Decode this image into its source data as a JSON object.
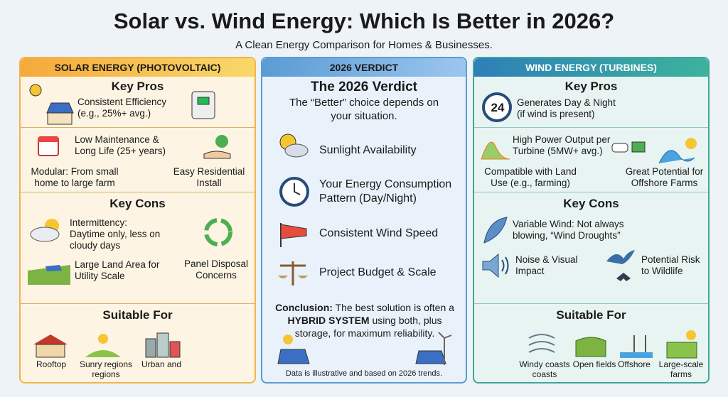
{
  "header": {
    "title": "Solar vs. Wind Energy: Which Is Better in 2026?",
    "subtitle": "A Clean Energy Comparison for Homes & Businesses."
  },
  "solar": {
    "heading": "SOLAR ENERGY (PHOTOVOLTAIC)",
    "pros_title": "Key Pros",
    "pros": [
      "Consistent Efficiency (e.g., 25%+ avg.)",
      "Low Maintenance & Long Life (25+ years)",
      "Modular: From small home to large farm",
      "Easy Residential Install"
    ],
    "cons_title": "Key Cons",
    "cons": [
      "Intermittency: Daytime only, less on cloudy days",
      "Large Land Area for Utility Scale",
      "Panel Disposal Concerns"
    ],
    "suitable_title": "Suitable For",
    "suitable": [
      "Rooftop",
      "Sunry regions regions",
      "Urban and"
    ]
  },
  "verdict": {
    "heading": "2026 VERDICT",
    "title": "The 2026 Verdict",
    "intro": "The “Better” choice depends on your situation.",
    "factors": [
      "Sunlight Availability",
      "Your Energy Consumption Pattern (Day/Night)",
      "Consistent Wind Speed",
      "Project Budget & Scale"
    ],
    "conclusion": {
      "lead": "Conclusion:",
      "text1": "The best solution is often a",
      "emphasis": "HYBRID SYSTEM",
      "text2": "using both, plus storage, for maximum reliability."
    },
    "footnote": "Data is illustrative and based on 2026 trends."
  },
  "wind": {
    "heading": "WIND ENERGY (TURBINES)",
    "pros_title": "Key Pros",
    "clock_label": "24",
    "pros": [
      "Generates Day & Night (if wind is present)",
      "High Power Output per Turbine (5MW+ avg.)",
      "Compatible with Land Use (e.g., farming)",
      "Great Potential for Offshore Farms"
    ],
    "cons_title": "Key Cons",
    "cons": [
      "Variable Wind: Not always blowing, “Wind Droughts”",
      "Noise & Visual Impact",
      "Potential Risk to Wildlife"
    ],
    "suitable_title": "Suitable For",
    "suitable": [
      "Windy coasts coasts",
      "Open fields",
      "Offshore",
      "Large-scale farms"
    ]
  }
}
